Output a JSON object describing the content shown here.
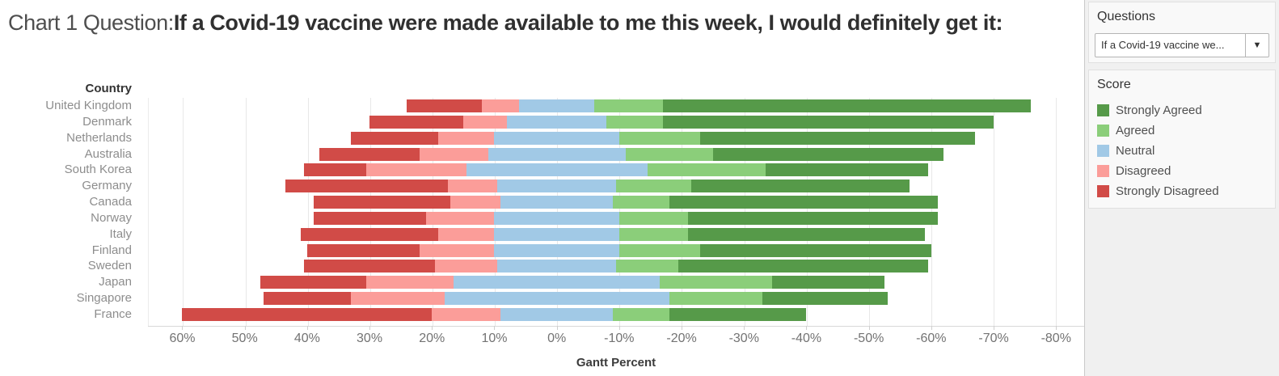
{
  "title": {
    "prefix": "Chart 1 Question:",
    "question": "If a Covid-19 vaccine were made available to me this week, I would definitely get it:"
  },
  "chart_data": {
    "type": "bar",
    "variant": "diverging-stacked-likert",
    "title": "Chart 1 Question: If a Covid-19 vaccine were made available to me this week, I would definitely get it:",
    "column_header": "Country",
    "categories": [
      "United Kingdom",
      "Denmark",
      "Netherlands",
      "Australia",
      "South Korea",
      "Germany",
      "Canada",
      "Norway",
      "Italy",
      "Finland",
      "Sweden",
      "Japan",
      "Singapore",
      "France"
    ],
    "series": [
      {
        "name": "Strongly Disagreed",
        "color": "#d14b47",
        "values": [
          12,
          15,
          14,
          16,
          10,
          26,
          22,
          18,
          22,
          18,
          21,
          17,
          14,
          40
        ]
      },
      {
        "name": "Disagreed",
        "color": "#fb9d99",
        "values": [
          6,
          7,
          9,
          11,
          16,
          8,
          8,
          11,
          9,
          12,
          10,
          14,
          15,
          11
        ]
      },
      {
        "name": "Neutral",
        "color": "#a1c9e6",
        "values": [
          12,
          16,
          20,
          22,
          29,
          19,
          18,
          20,
          20,
          20,
          19,
          33,
          36,
          18
        ]
      },
      {
        "name": "Agreed",
        "color": "#8bce7a",
        "values": [
          11,
          9,
          13,
          14,
          19,
          12,
          9,
          11,
          11,
          13,
          10,
          18,
          15,
          9
        ]
      },
      {
        "name": "Strongly Agreed",
        "color": "#569a49",
        "values": [
          59,
          53,
          44,
          37,
          26,
          35,
          43,
          40,
          38,
          37,
          40,
          18,
          20,
          22
        ]
      }
    ],
    "values_unit": "percent",
    "neutral_centered_on_zero": true,
    "xlabel": "Gantt Percent",
    "x_ticks": [
      "60%",
      "50%",
      "40%",
      "30%",
      "20%",
      "10%",
      "0%",
      "-10%",
      "-20%",
      "-30%",
      "-40%",
      "-50%",
      "-60%",
      "-70%",
      "-80%"
    ],
    "x_tick_values": [
      60,
      50,
      40,
      30,
      20,
      10,
      0,
      -10,
      -20,
      -30,
      -40,
      -50,
      -60,
      -70,
      -80
    ],
    "axis_domain": [
      65.5,
      -84.5
    ],
    "axis_reversed": true,
    "grid": true,
    "legend_title": "Score",
    "legend_position": "right",
    "legend_order": [
      "Strongly Agreed",
      "Agreed",
      "Neutral",
      "Disagreed",
      "Strongly Disagreed"
    ]
  },
  "panel": {
    "questions_label": "Questions",
    "dropdown_value": "If a Covid-19 vaccine we...",
    "dropdown_arrow": "▼"
  }
}
